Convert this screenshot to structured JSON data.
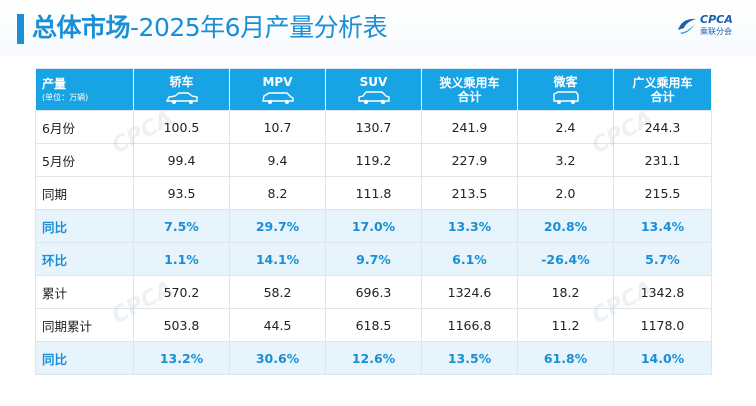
{
  "title": {
    "bold": "总体市场",
    "rest": "-2025年6月产量分析表"
  },
  "logo": {
    "name": "CPCA",
    "cn": "乘联分会"
  },
  "table": {
    "header": {
      "first": "产量",
      "unit": "(单位：万辆)",
      "columns": [
        {
          "line1": "轿车",
          "line2": "",
          "icon": "sedan-icon"
        },
        {
          "line1": "MPV",
          "line2": "",
          "icon": "mpv-icon"
        },
        {
          "line1": "SUV",
          "line2": "",
          "icon": "suv-icon"
        },
        {
          "line1": "狭义乘用车",
          "line2": "合计",
          "icon": ""
        },
        {
          "line1": "微客",
          "line2": "",
          "icon": "minivan-icon"
        },
        {
          "line1": "广义乘用车",
          "line2": "合计",
          "icon": ""
        }
      ]
    },
    "rows": [
      {
        "label": "6月份",
        "type": "value",
        "cells": [
          "100.5",
          "10.7",
          "130.7",
          "241.9",
          "2.4",
          "244.3"
        ]
      },
      {
        "label": "5月份",
        "type": "value",
        "cells": [
          "99.4",
          "9.4",
          "119.2",
          "227.9",
          "3.2",
          "231.1"
        ]
      },
      {
        "label": "同期",
        "type": "value",
        "cells": [
          "93.5",
          "8.2",
          "111.8",
          "213.5",
          "2.0",
          "215.5"
        ]
      },
      {
        "label": "同比",
        "type": "pct",
        "cells": [
          "7.5%",
          "29.7%",
          "17.0%",
          "13.3%",
          "20.8%",
          "13.4%"
        ]
      },
      {
        "label": "环比",
        "type": "pct",
        "cells": [
          "1.1%",
          "14.1%",
          "9.7%",
          "6.1%",
          "-26.4%",
          "5.7%"
        ]
      },
      {
        "label": "累计",
        "type": "value",
        "cells": [
          "570.2",
          "58.2",
          "696.3",
          "1324.6",
          "18.2",
          "1342.8"
        ]
      },
      {
        "label": "同期累计",
        "type": "value",
        "cells": [
          "503.8",
          "44.5",
          "618.5",
          "1166.8",
          "11.2",
          "1178.0"
        ]
      },
      {
        "label": "同比",
        "type": "pct",
        "cells": [
          "13.2%",
          "30.6%",
          "12.6%",
          "13.5%",
          "61.8%",
          "14.0%"
        ]
      }
    ]
  },
  "colors": {
    "accent": "#1a8fd6",
    "header_bg": "#18a3e4",
    "pct_row_bg": "#e8f4fb"
  }
}
